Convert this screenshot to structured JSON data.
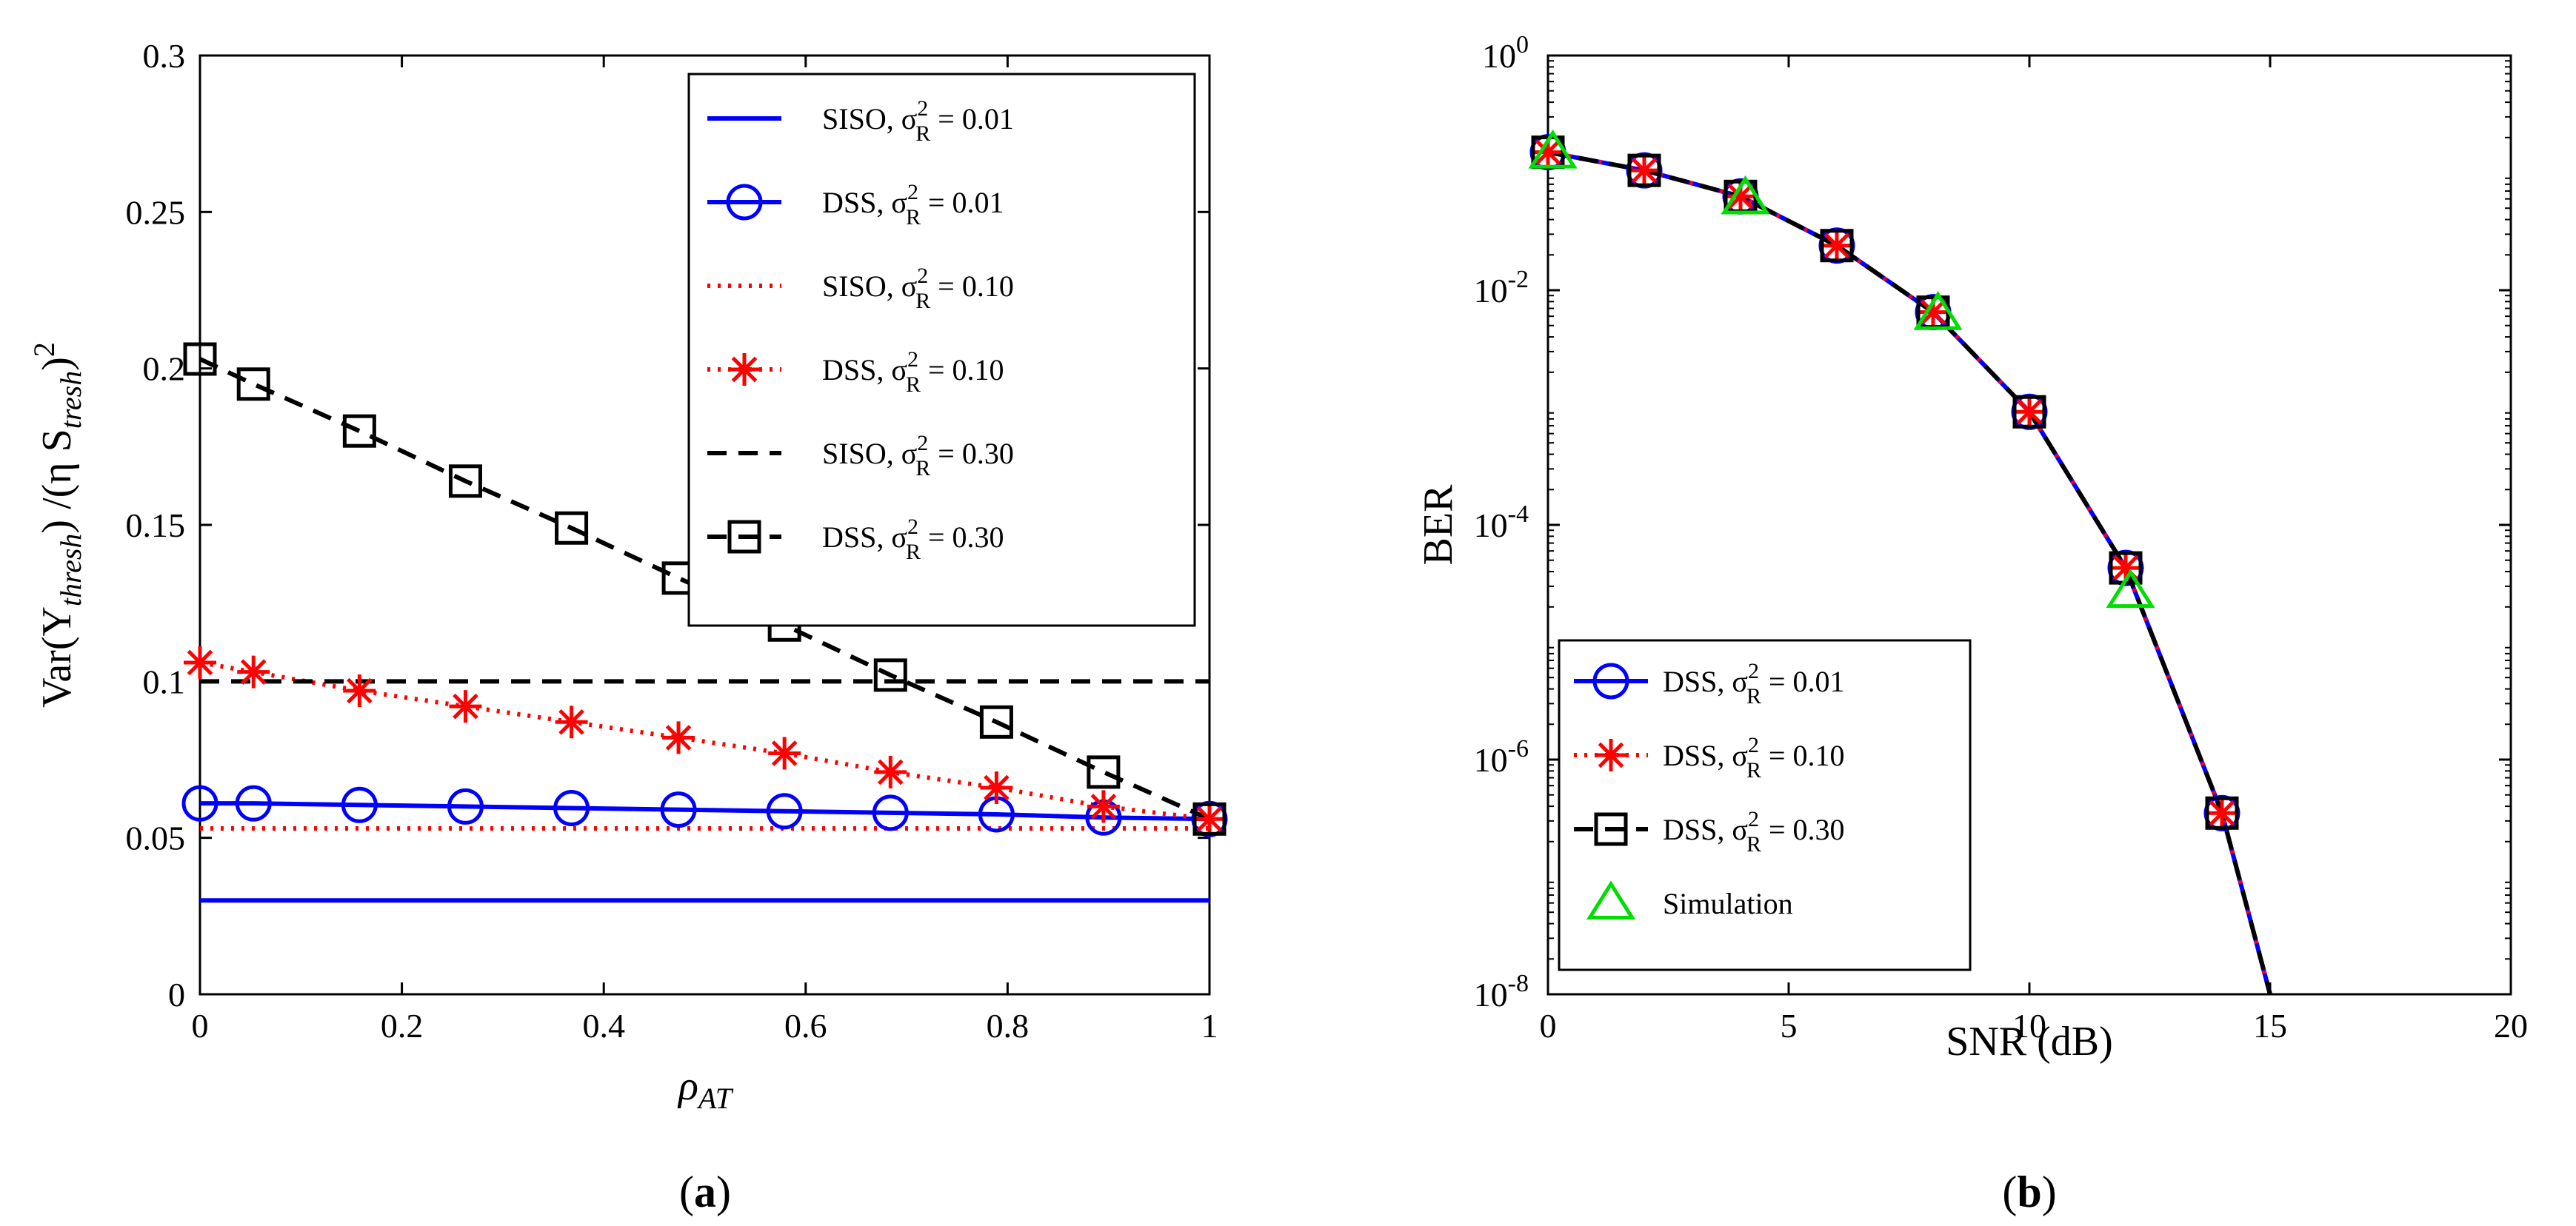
{
  "chart_data": [
    {
      "id": "a",
      "panel_label": {
        "open": "(",
        "letter": "a",
        "close": ")"
      },
      "type": "line",
      "xlim": [
        0,
        1
      ],
      "ylim": [
        0,
        0.3
      ],
      "xticks": [
        "0",
        "0.2",
        "0.4",
        "0.6",
        "0.8",
        "1"
      ],
      "xtick_values": [
        0,
        0.2,
        0.4,
        0.6,
        0.8,
        1
      ],
      "yticks": [
        "0",
        "0.05",
        "0.1",
        "0.15",
        "0.2",
        "0.25",
        "0.3"
      ],
      "ytick_values": [
        0,
        0.05,
        0.1,
        0.15,
        0.2,
        0.25,
        0.3
      ],
      "xlabel": {
        "main": "ρ",
        "sub": "AT"
      },
      "ylabel": {
        "pre": "Var(Y",
        "sub1": "thresh",
        "mid": ") /(η S",
        "sub2": "tresh",
        "post": ")",
        "sup": "2"
      },
      "legend_position": "top-right",
      "series": [
        {
          "label_prefix": "SISO, σ",
          "label_sup": "2",
          "label_sub": "R",
          "label_suffix": " = 0.01",
          "color": "#0000ff",
          "dash": "solid",
          "marker": "none",
          "x": [
            0,
            1
          ],
          "y": [
            0.03,
            0.03
          ]
        },
        {
          "label_prefix": "DSS, σ",
          "label_sup": "2",
          "label_sub": "R",
          "label_suffix": " = 0.01",
          "color": "#0000ff",
          "dash": "solid",
          "marker": "circle",
          "x": [
            0,
            0.053,
            0.158,
            0.263,
            0.368,
            0.474,
            0.579,
            0.684,
            0.789,
            0.895,
            1
          ],
          "y": [
            0.061,
            0.061,
            0.0605,
            0.06,
            0.0595,
            0.059,
            0.0585,
            0.058,
            0.0575,
            0.0565,
            0.056
          ]
        },
        {
          "label_prefix": "SISO, σ",
          "label_sup": "2",
          "label_sub": "R",
          "label_suffix": " = 0.10",
          "color": "#ff0000",
          "dash": "dot",
          "marker": "none",
          "x": [
            0,
            1
          ],
          "y": [
            0.053,
            0.053
          ]
        },
        {
          "label_prefix": "DSS, σ",
          "label_sup": "2",
          "label_sub": "R",
          "label_suffix": " = 0.10",
          "color": "#ff0000",
          "dash": "dot",
          "marker": "asterisk",
          "x": [
            0,
            0.053,
            0.158,
            0.263,
            0.368,
            0.474,
            0.579,
            0.684,
            0.789,
            0.895,
            1
          ],
          "y": [
            0.106,
            0.103,
            0.097,
            0.092,
            0.087,
            0.082,
            0.077,
            0.071,
            0.066,
            0.06,
            0.056
          ]
        },
        {
          "label_prefix": "SISO, σ",
          "label_sup": "2",
          "label_sub": "R",
          "label_suffix": " = 0.30",
          "color": "#000000",
          "dash": "dash",
          "marker": "none",
          "x": [
            0,
            1
          ],
          "y": [
            0.1,
            0.1
          ]
        },
        {
          "label_prefix": "DSS, σ",
          "label_sup": "2",
          "label_sub": "R",
          "label_suffix": " = 0.30",
          "color": "#000000",
          "dash": "dash",
          "marker": "square",
          "x": [
            0,
            0.053,
            0.158,
            0.263,
            0.368,
            0.474,
            0.579,
            0.684,
            0.789,
            0.895,
            1
          ],
          "y": [
            0.203,
            0.195,
            0.18,
            0.164,
            0.149,
            0.133,
            0.118,
            0.102,
            0.087,
            0.071,
            0.056
          ]
        }
      ]
    },
    {
      "id": "b",
      "panel_label": {
        "open": "(",
        "letter": "b",
        "close": ")"
      },
      "type": "line",
      "yscale": "log",
      "xlim": [
        0,
        20
      ],
      "ylim_exp": [
        -8,
        0
      ],
      "xticks": [
        "0",
        "5",
        "10",
        "15",
        "20"
      ],
      "xtick_values": [
        0,
        5,
        10,
        15,
        20
      ],
      "yticks": [
        {
          "base": "10",
          "exp": "0",
          "value_exp": 0
        },
        {
          "base": "10",
          "exp": "-2",
          "value_exp": -2
        },
        {
          "base": "10",
          "exp": "-4",
          "value_exp": -4
        },
        {
          "base": "10",
          "exp": "-6",
          "value_exp": -6
        },
        {
          "base": "10",
          "exp": "-8",
          "value_exp": -8
        }
      ],
      "xlabel": "SNR (dB)",
      "ylabel": "BER",
      "legend_position": "bottom-left",
      "curve": {
        "x": [
          0,
          2,
          4,
          6,
          8,
          10,
          12,
          14,
          15
        ],
        "y": [
          0.15,
          0.105,
          0.063,
          0.024,
          0.0065,
          0.00092,
          4.3e-05,
          3.5e-07,
          1e-08
        ]
      },
      "series": [
        {
          "label_prefix": "DSS, σ",
          "label_sup": "2",
          "label_sub": "R",
          "label_suffix": " = 0.01",
          "color": "#0000ff",
          "dash": "solid",
          "marker": "circle",
          "x": [
            0,
            2,
            4,
            6,
            8,
            10,
            12,
            14
          ],
          "y": [
            0.15,
            0.105,
            0.063,
            0.024,
            0.0065,
            0.00092,
            4.3e-05,
            3.5e-07
          ]
        },
        {
          "label_prefix": "DSS, σ",
          "label_sup": "2",
          "label_sub": "R",
          "label_suffix": " = 0.10",
          "color": "#ff0000",
          "dash": "dot",
          "marker": "asterisk",
          "x": [
            0,
            2,
            4,
            6,
            8,
            10,
            12,
            14
          ],
          "y": [
            0.15,
            0.105,
            0.063,
            0.024,
            0.0065,
            0.00092,
            4.3e-05,
            3.5e-07
          ]
        },
        {
          "label_prefix": "DSS, σ",
          "label_sup": "2",
          "label_sub": "R",
          "label_suffix": " = 0.30",
          "color": "#000000",
          "dash": "dash",
          "marker": "square",
          "x": [
            0,
            2,
            4,
            6,
            8,
            10,
            12,
            14
          ],
          "y": [
            0.15,
            0.105,
            0.063,
            0.024,
            0.0065,
            0.00092,
            4.3e-05,
            3.5e-07
          ]
        },
        {
          "label": "Simulation",
          "color": "#00dd00",
          "dash": "none",
          "marker": "triangle",
          "x": [
            0.1,
            4.1,
            8.1,
            12.1
          ],
          "y": [
            0.15,
            0.061,
            0.0063,
            2.7e-05
          ]
        }
      ]
    }
  ]
}
